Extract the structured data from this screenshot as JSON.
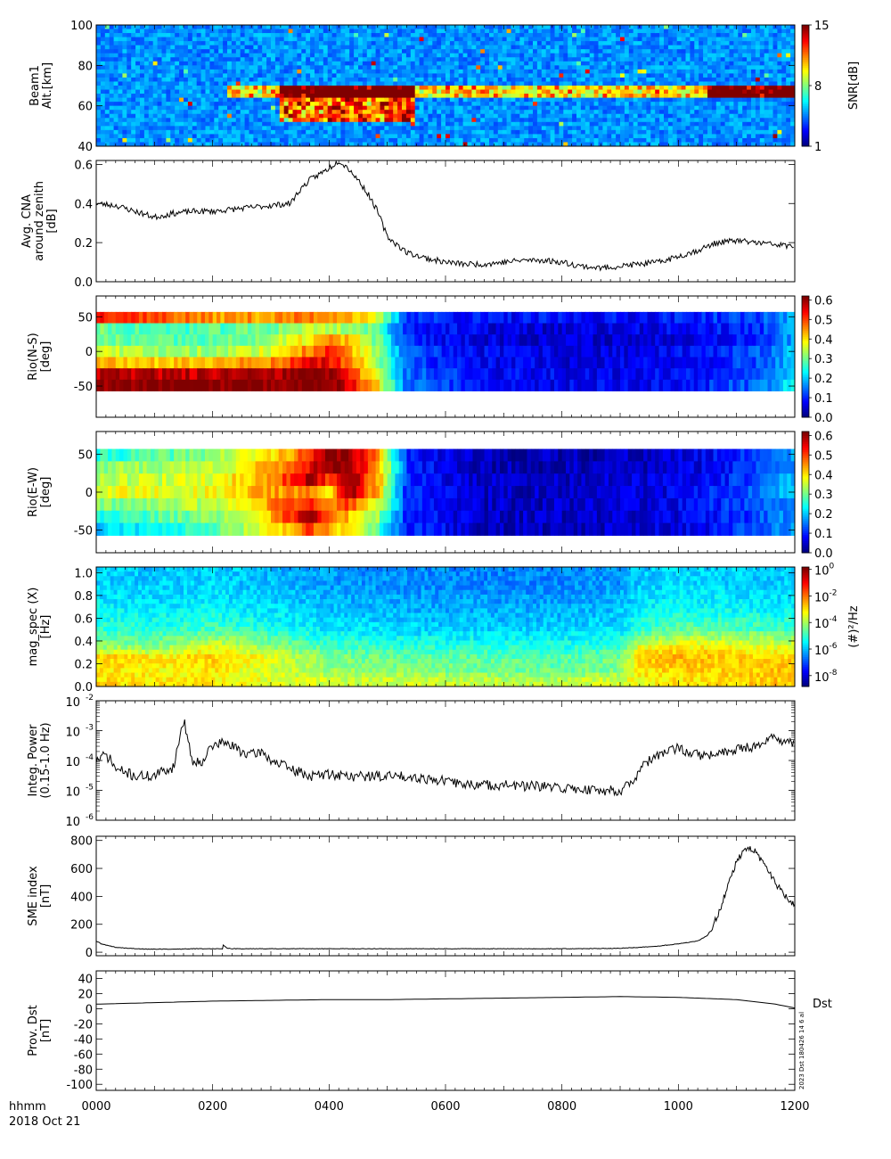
{
  "footer": {
    "time_label": "hhmm",
    "date_label": "2018 Oct 21",
    "x_ticks": [
      "0000",
      "0200",
      "0400",
      "0600",
      "0800",
      "1000",
      "1200"
    ]
  },
  "stamp": "2023 Dst 180426 14 6 al",
  "chart_data": [
    {
      "id": "beam1",
      "type": "heatmap",
      "ylabel": [
        "Beam1",
        "Alt.[km]"
      ],
      "y_ticks": [
        "40",
        "60",
        "80",
        "100"
      ],
      "ylim": [
        40,
        100
      ],
      "xlim": [
        0,
        720
      ],
      "colorbar": {
        "label": "SNR[dB]",
        "ticks": [
          "1",
          "8",
          "15"
        ],
        "range": [
          1,
          15
        ]
      },
      "description_features": {
        "layer_altitude_km": 67,
        "layer_start_min": 135,
        "layer_end_min": 720,
        "strong_patch_min": [
          190,
          330
        ],
        "strong_patch_alt_km": [
          52,
          70
        ]
      }
    },
    {
      "id": "cna",
      "type": "line",
      "ylabel": [
        "Avg. CNA",
        "around zenith",
        "[dB]"
      ],
      "y_ticks": [
        "0.0",
        "0.2",
        "0.4",
        "0.6"
      ],
      "ylim": [
        0,
        0.62
      ],
      "x": [
        0,
        20,
        40,
        60,
        80,
        100,
        120,
        140,
        160,
        180,
        200,
        210,
        220,
        230,
        240,
        250,
        260,
        270,
        280,
        290,
        300,
        320,
        340,
        360,
        380,
        400,
        420,
        440,
        460,
        480,
        500,
        520,
        540,
        560,
        580,
        600,
        620,
        640,
        660,
        680,
        700,
        720
      ],
      "values": [
        0.4,
        0.39,
        0.36,
        0.33,
        0.35,
        0.36,
        0.36,
        0.37,
        0.38,
        0.39,
        0.4,
        0.47,
        0.52,
        0.55,
        0.58,
        0.62,
        0.58,
        0.52,
        0.45,
        0.36,
        0.23,
        0.15,
        0.12,
        0.1,
        0.09,
        0.09,
        0.1,
        0.11,
        0.11,
        0.1,
        0.08,
        0.07,
        0.08,
        0.09,
        0.1,
        0.13,
        0.16,
        0.2,
        0.21,
        0.2,
        0.19,
        0.18
      ]
    },
    {
      "id": "rio_ns",
      "type": "heatmap",
      "ylabel": [
        "Rio(N-S)",
        "[deg]"
      ],
      "y_ticks": [
        "-50",
        "0",
        "50"
      ],
      "ylim": [
        -95,
        80
      ],
      "data_range_deg": [
        -57,
        57
      ],
      "xlim": [
        0,
        720
      ],
      "colorbar": {
        "label": "",
        "ticks": [
          "0.0",
          "0.1",
          "0.2",
          "0.3",
          "0.4",
          "0.5",
          "0.6"
        ],
        "range": [
          0,
          0.62
        ]
      },
      "rows_deg": [
        49,
        33,
        16,
        0,
        -16,
        -33,
        -49
      ],
      "times": [
        0,
        60,
        120,
        180,
        220,
        240,
        260,
        290,
        320,
        400,
        480,
        560,
        620,
        680,
        720
      ],
      "values": [
        [
          0.55,
          0.5,
          0.45,
          0.45,
          0.47,
          0.47,
          0.45,
          0.35,
          0.12,
          0.08,
          0.08,
          0.08,
          0.1,
          0.12,
          0.18
        ],
        [
          0.3,
          0.27,
          0.28,
          0.3,
          0.35,
          0.35,
          0.33,
          0.28,
          0.1,
          0.06,
          0.05,
          0.06,
          0.08,
          0.1,
          0.18
        ],
        [
          0.3,
          0.28,
          0.28,
          0.32,
          0.4,
          0.45,
          0.42,
          0.3,
          0.1,
          0.06,
          0.05,
          0.05,
          0.07,
          0.1,
          0.18
        ],
        [
          0.35,
          0.33,
          0.33,
          0.37,
          0.47,
          0.52,
          0.45,
          0.32,
          0.12,
          0.07,
          0.06,
          0.06,
          0.08,
          0.12,
          0.2
        ],
        [
          0.45,
          0.42,
          0.43,
          0.46,
          0.55,
          0.55,
          0.48,
          0.33,
          0.12,
          0.07,
          0.06,
          0.06,
          0.08,
          0.12,
          0.2
        ],
        [
          0.58,
          0.58,
          0.58,
          0.58,
          0.62,
          0.6,
          0.52,
          0.37,
          0.14,
          0.08,
          0.07,
          0.07,
          0.09,
          0.13,
          0.22
        ],
        [
          0.62,
          0.62,
          0.62,
          0.62,
          0.62,
          0.62,
          0.56,
          0.4,
          0.15,
          0.09,
          0.07,
          0.07,
          0.09,
          0.14,
          0.23
        ]
      ]
    },
    {
      "id": "rio_ew",
      "type": "heatmap",
      "ylabel": [
        "Rio(E-W)",
        "[deg]"
      ],
      "y_ticks": [
        "-50",
        "0",
        "50"
      ],
      "ylim": [
        -80,
        80
      ],
      "data_range_deg": [
        -57,
        57
      ],
      "xlim": [
        0,
        720
      ],
      "colorbar": {
        "label": "",
        "ticks": [
          "0.0",
          "0.1",
          "0.2",
          "0.3",
          "0.4",
          "0.5",
          "0.6"
        ],
        "range": [
          0,
          0.62
        ]
      },
      "rows_deg": [
        49,
        33,
        16,
        0,
        -16,
        -33,
        -49
      ],
      "times": [
        0,
        60,
        120,
        180,
        220,
        240,
        260,
        290,
        320,
        400,
        480,
        560,
        620,
        680,
        720
      ],
      "values": [
        [
          0.25,
          0.28,
          0.32,
          0.4,
          0.5,
          0.6,
          0.62,
          0.45,
          0.1,
          0.03,
          0.03,
          0.04,
          0.06,
          0.12,
          0.18
        ],
        [
          0.32,
          0.33,
          0.35,
          0.43,
          0.55,
          0.62,
          0.62,
          0.45,
          0.1,
          0.03,
          0.03,
          0.04,
          0.06,
          0.12,
          0.18
        ],
        [
          0.35,
          0.35,
          0.37,
          0.45,
          0.6,
          0.5,
          0.62,
          0.45,
          0.1,
          0.04,
          0.04,
          0.05,
          0.07,
          0.12,
          0.2
        ],
        [
          0.38,
          0.37,
          0.38,
          0.45,
          0.45,
          0.4,
          0.62,
          0.42,
          0.1,
          0.04,
          0.04,
          0.05,
          0.08,
          0.13,
          0.2
        ],
        [
          0.3,
          0.32,
          0.35,
          0.45,
          0.55,
          0.45,
          0.5,
          0.38,
          0.1,
          0.04,
          0.04,
          0.05,
          0.08,
          0.13,
          0.18
        ],
        [
          0.25,
          0.28,
          0.32,
          0.42,
          0.62,
          0.5,
          0.42,
          0.32,
          0.1,
          0.04,
          0.04,
          0.05,
          0.07,
          0.12,
          0.18
        ],
        [
          0.2,
          0.23,
          0.28,
          0.38,
          0.5,
          0.45,
          0.38,
          0.28,
          0.1,
          0.04,
          0.04,
          0.05,
          0.07,
          0.12,
          0.17
        ]
      ]
    },
    {
      "id": "mag_spec",
      "type": "heatmap",
      "ylabel": [
        "mag_spec (X)",
        "[Hz]"
      ],
      "y_ticks": [
        "0.0",
        "0.2",
        "0.4",
        "0.6",
        "0.8",
        "1.0"
      ],
      "ylim": [
        0,
        1.05
      ],
      "xlim": [
        0,
        720
      ],
      "colorbar": {
        "label": "(#)²/Hz",
        "ticks": [
          {
            "base": "10",
            "exp": "0"
          },
          {
            "base": "10",
            "exp": "-2"
          },
          {
            "base": "10",
            "exp": "-4"
          },
          {
            "base": "10",
            "exp": "-6"
          },
          {
            "base": "10",
            "exp": "-8"
          }
        ],
        "log_range": [
          -9,
          0
        ]
      },
      "times": [
        0,
        60,
        120,
        180,
        240,
        300,
        360,
        420,
        480,
        540,
        560,
        600,
        660,
        720
      ],
      "freqs_hz": [
        0.05,
        0.15,
        0.25,
        0.35,
        0.5,
        0.7,
        0.9
      ],
      "log_values": [
        [
          -3.0,
          -3.2,
          -3.3,
          -3.6,
          -3.8,
          -3.8,
          -3.9,
          -4.0,
          -4.0,
          -3.7,
          -3.4,
          -3.2,
          -3.0,
          -2.8
        ],
        [
          -3.2,
          -3.4,
          -3.2,
          -3.8,
          -4.3,
          -4.5,
          -4.6,
          -4.7,
          -4.8,
          -4.5,
          -3.2,
          -2.9,
          -3.1,
          -2.7
        ],
        [
          -2.8,
          -3.2,
          -2.9,
          -3.6,
          -4.5,
          -4.7,
          -4.8,
          -4.8,
          -4.9,
          -4.6,
          -3.0,
          -2.7,
          -2.9,
          -2.9
        ],
        [
          -4.3,
          -4.5,
          -3.6,
          -4.3,
          -5.0,
          -5.2,
          -5.3,
          -5.3,
          -5.4,
          -5.1,
          -3.6,
          -3.3,
          -3.5,
          -3.7
        ],
        [
          -5.2,
          -5.3,
          -5.0,
          -5.4,
          -5.8,
          -5.9,
          -6.0,
          -6.0,
          -6.0,
          -5.8,
          -5.2,
          -4.8,
          -4.9,
          -5.0
        ],
        [
          -5.7,
          -5.8,
          -5.7,
          -5.9,
          -6.2,
          -6.3,
          -6.4,
          -6.4,
          -6.4,
          -6.2,
          -5.8,
          -5.6,
          -5.7,
          -5.8
        ],
        [
          -6.0,
          -6.1,
          -6.0,
          -6.2,
          -6.5,
          -6.6,
          -6.7,
          -6.7,
          -6.7,
          -6.5,
          -6.1,
          -5.9,
          -6.0,
          -6.1
        ]
      ]
    },
    {
      "id": "integ_power",
      "type": "line",
      "ylabel": [
        "Integ. Power",
        "(0.15-1.0 Hz)"
      ],
      "y_log": true,
      "y_ticks": [
        {
          "base": "10",
          "exp": "-6"
        },
        {
          "base": "10",
          "exp": "-5"
        },
        {
          "base": "10",
          "exp": "-4"
        },
        {
          "base": "10",
          "exp": "-3"
        },
        {
          "base": "10",
          "exp": "-2"
        }
      ],
      "ylim": [
        1e-06,
        0.01
      ],
      "x": [
        0,
        10,
        20,
        40,
        60,
        80,
        85,
        90,
        95,
        100,
        110,
        120,
        130,
        140,
        150,
        160,
        170,
        180,
        200,
        220,
        240,
        260,
        280,
        300,
        320,
        340,
        360,
        380,
        400,
        420,
        440,
        460,
        480,
        500,
        520,
        540,
        550,
        560,
        580,
        600,
        620,
        640,
        660,
        680,
        700,
        720
      ],
      "values": [
        0.0001,
        0.00015,
        5e-05,
        3e-05,
        3e-05,
        6e-05,
        0.0003,
        0.002,
        0.0003,
        8e-05,
        0.0001,
        0.0003,
        0.0004,
        0.0003,
        0.0002,
        0.00015,
        0.0002,
        0.0001,
        5e-05,
        3e-05,
        3.5e-05,
        3e-05,
        3e-05,
        3e-05,
        3e-05,
        2.5e-05,
        2e-05,
        1.6e-05,
        1.5e-05,
        1.5e-05,
        1.4e-05,
        1.3e-05,
        1.2e-05,
        1.1e-05,
        1e-05,
        1e-05,
        1.5e-05,
        4e-05,
        0.00015,
        0.00025,
        0.00015,
        0.00015,
        0.00025,
        0.0003,
        0.0006,
        0.0003
      ]
    },
    {
      "id": "sme",
      "type": "line",
      "ylabel": [
        "SME index",
        "[nT]"
      ],
      "y_ticks": [
        "0",
        "200",
        "400",
        "600",
        "800"
      ],
      "ylim": [
        -25,
        830
      ],
      "x": [
        0,
        5,
        20,
        40,
        60,
        80,
        100,
        130,
        131,
        135,
        140,
        160,
        200,
        250,
        300,
        350,
        400,
        450,
        500,
        540,
        560,
        580,
        600,
        620,
        630,
        640,
        650,
        660,
        670,
        680,
        690,
        700,
        710,
        720
      ],
      "values": [
        80,
        60,
        35,
        25,
        22,
        22,
        25,
        25,
        50,
        30,
        25,
        25,
        25,
        25,
        25,
        25,
        25,
        25,
        25,
        28,
        35,
        45,
        60,
        80,
        120,
        250,
        450,
        650,
        750,
        720,
        600,
        500,
        400,
        340
      ]
    },
    {
      "id": "dst",
      "type": "line",
      "ylabel": [
        "Prov. Dst",
        "[nT]"
      ],
      "y_ticks": [
        "-100",
        "-80",
        "-60",
        "-40",
        "-20",
        "0",
        "20",
        "40"
      ],
      "ylim": [
        -108,
        50
      ],
      "legend_label": "Dst",
      "x": [
        0,
        60,
        120,
        180,
        240,
        300,
        360,
        420,
        480,
        540,
        600,
        660,
        700,
        720
      ],
      "values": [
        6,
        8,
        10,
        11,
        12,
        12,
        13,
        14,
        15,
        16,
        15,
        12,
        6,
        1
      ]
    }
  ]
}
